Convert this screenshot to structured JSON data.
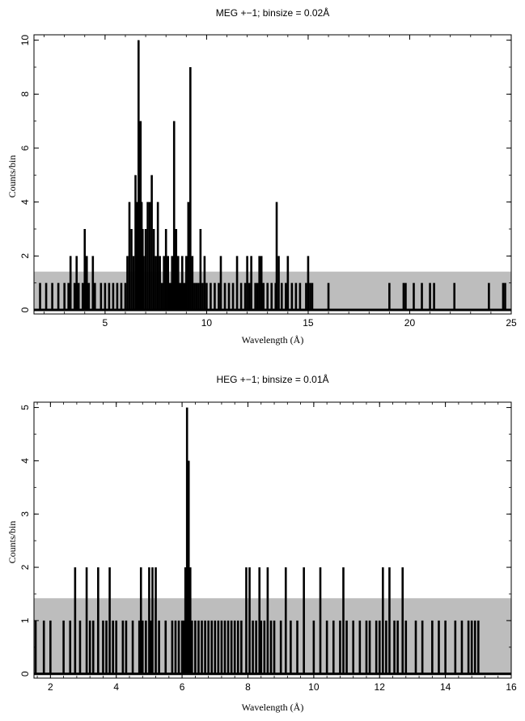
{
  "chart_data": [
    {
      "type": "bar",
      "title": "MEG +−1; binsize = 0.02Å",
      "xlabel": "Wavelength (Å)",
      "ylabel": "Counts/bin",
      "xlim": [
        1.5,
        25
      ],
      "ylim": [
        -0.15,
        10.2
      ],
      "xticks": [
        5,
        10,
        15,
        20,
        25
      ],
      "yticks": [
        0,
        2,
        4,
        6,
        8,
        10
      ],
      "band": [
        0,
        1.42
      ],
      "bars": [
        [
          1.8,
          1
        ],
        [
          2.1,
          1
        ],
        [
          2.4,
          1
        ],
        [
          2.7,
          1
        ],
        [
          3.0,
          1
        ],
        [
          3.2,
          1
        ],
        [
          3.3,
          2
        ],
        [
          3.5,
          1
        ],
        [
          3.6,
          2
        ],
        [
          3.7,
          1
        ],
        [
          3.9,
          1
        ],
        [
          4.0,
          3
        ],
        [
          4.1,
          2
        ],
        [
          4.2,
          1
        ],
        [
          4.4,
          2
        ],
        [
          4.5,
          1
        ],
        [
          4.8,
          1
        ],
        [
          5.0,
          1
        ],
        [
          5.2,
          1
        ],
        [
          5.4,
          1
        ],
        [
          5.6,
          1
        ],
        [
          5.8,
          1
        ],
        [
          6.0,
          1
        ],
        [
          6.1,
          2
        ],
        [
          6.2,
          4
        ],
        [
          6.3,
          3
        ],
        [
          6.4,
          2
        ],
        [
          6.5,
          5
        ],
        [
          6.55,
          4
        ],
        [
          6.65,
          10
        ],
        [
          6.7,
          5
        ],
        [
          6.75,
          7
        ],
        [
          6.8,
          4
        ],
        [
          6.85,
          3
        ],
        [
          6.9,
          2
        ],
        [
          7.0,
          3
        ],
        [
          7.1,
          4
        ],
        [
          7.2,
          4
        ],
        [
          7.3,
          5
        ],
        [
          7.4,
          3
        ],
        [
          7.5,
          2
        ],
        [
          7.6,
          4
        ],
        [
          7.7,
          2
        ],
        [
          7.8,
          1
        ],
        [
          7.9,
          2
        ],
        [
          8.0,
          3
        ],
        [
          8.1,
          2
        ],
        [
          8.2,
          1
        ],
        [
          8.3,
          2
        ],
        [
          8.4,
          7
        ],
        [
          8.5,
          3
        ],
        [
          8.6,
          2
        ],
        [
          8.7,
          1
        ],
        [
          8.8,
          2
        ],
        [
          8.9,
          1
        ],
        [
          9.0,
          2
        ],
        [
          9.1,
          4
        ],
        [
          9.2,
          9
        ],
        [
          9.3,
          2
        ],
        [
          9.4,
          1
        ],
        [
          9.5,
          1
        ],
        [
          9.6,
          1
        ],
        [
          9.7,
          3
        ],
        [
          9.8,
          1
        ],
        [
          9.9,
          2
        ],
        [
          10.0,
          1
        ],
        [
          10.2,
          1
        ],
        [
          10.4,
          1
        ],
        [
          10.6,
          1
        ],
        [
          10.7,
          2
        ],
        [
          10.9,
          1
        ],
        [
          11.1,
          1
        ],
        [
          11.3,
          1
        ],
        [
          11.5,
          2
        ],
        [
          11.7,
          1
        ],
        [
          11.9,
          1
        ],
        [
          12.0,
          2
        ],
        [
          12.1,
          1
        ],
        [
          12.2,
          2
        ],
        [
          12.4,
          1
        ],
        [
          12.5,
          1
        ],
        [
          12.6,
          2
        ],
        [
          12.7,
          2
        ],
        [
          12.8,
          1
        ],
        [
          13.0,
          1
        ],
        [
          13.2,
          1
        ],
        [
          13.4,
          1
        ],
        [
          13.45,
          4
        ],
        [
          13.55,
          2
        ],
        [
          13.7,
          1
        ],
        [
          13.9,
          1
        ],
        [
          14.0,
          2
        ],
        [
          14.2,
          1
        ],
        [
          14.4,
          1
        ],
        [
          14.6,
          1
        ],
        [
          14.9,
          1
        ],
        [
          15.0,
          2
        ],
        [
          15.1,
          1
        ],
        [
          15.2,
          1
        ],
        [
          16.0,
          1
        ],
        [
          19.0,
          1
        ],
        [
          19.7,
          1
        ],
        [
          19.8,
          1
        ],
        [
          20.2,
          1
        ],
        [
          20.6,
          1
        ],
        [
          21.0,
          1
        ],
        [
          21.2,
          1
        ],
        [
          22.2,
          1
        ],
        [
          23.9,
          1
        ],
        [
          24.6,
          1
        ],
        [
          24.7,
          1
        ]
      ]
    },
    {
      "type": "bar",
      "title": "HEG +−1; binsize = 0.01Å",
      "xlabel": "Wavelength (Å)",
      "ylabel": "Counts/bin",
      "xlim": [
        1.5,
        16
      ],
      "ylim": [
        -0.08,
        5.1
      ],
      "xticks": [
        2,
        4,
        6,
        8,
        10,
        12,
        14,
        16
      ],
      "yticks": [
        0,
        1,
        2,
        3,
        4,
        5
      ],
      "band": [
        0,
        1.42
      ],
      "bars": [
        [
          1.55,
          1
        ],
        [
          1.8,
          1
        ],
        [
          2.0,
          1
        ],
        [
          2.4,
          1
        ],
        [
          2.6,
          1
        ],
        [
          2.75,
          2
        ],
        [
          2.9,
          1
        ],
        [
          3.1,
          2
        ],
        [
          3.2,
          1
        ],
        [
          3.3,
          1
        ],
        [
          3.45,
          2
        ],
        [
          3.6,
          1
        ],
        [
          3.7,
          1
        ],
        [
          3.8,
          2
        ],
        [
          3.9,
          1
        ],
        [
          4.0,
          1
        ],
        [
          4.2,
          1
        ],
        [
          4.3,
          1
        ],
        [
          4.5,
          1
        ],
        [
          4.7,
          1
        ],
        [
          4.75,
          2
        ],
        [
          4.8,
          1
        ],
        [
          4.9,
          1
        ],
        [
          5.0,
          2
        ],
        [
          5.05,
          1
        ],
        [
          5.1,
          2
        ],
        [
          5.2,
          2
        ],
        [
          5.3,
          1
        ],
        [
          5.5,
          1
        ],
        [
          5.7,
          1
        ],
        [
          5.8,
          1
        ],
        [
          5.9,
          1
        ],
        [
          6.0,
          1
        ],
        [
          6.05,
          1
        ],
        [
          6.1,
          2
        ],
        [
          6.15,
          5
        ],
        [
          6.2,
          4
        ],
        [
          6.25,
          2
        ],
        [
          6.3,
          1
        ],
        [
          6.4,
          1
        ],
        [
          6.5,
          1
        ],
        [
          6.6,
          1
        ],
        [
          6.7,
          1
        ],
        [
          6.8,
          1
        ],
        [
          6.9,
          1
        ],
        [
          7.0,
          1
        ],
        [
          7.1,
          1
        ],
        [
          7.2,
          1
        ],
        [
          7.3,
          1
        ],
        [
          7.4,
          1
        ],
        [
          7.5,
          1
        ],
        [
          7.6,
          1
        ],
        [
          7.7,
          1
        ],
        [
          7.8,
          1
        ],
        [
          7.95,
          2
        ],
        [
          8.05,
          2
        ],
        [
          8.15,
          1
        ],
        [
          8.25,
          1
        ],
        [
          8.35,
          2
        ],
        [
          8.4,
          1
        ],
        [
          8.5,
          1
        ],
        [
          8.6,
          2
        ],
        [
          8.7,
          1
        ],
        [
          8.8,
          1
        ],
        [
          9.0,
          1
        ],
        [
          9.15,
          2
        ],
        [
          9.3,
          1
        ],
        [
          9.5,
          1
        ],
        [
          9.7,
          2
        ],
        [
          10.0,
          1
        ],
        [
          10.2,
          2
        ],
        [
          10.4,
          1
        ],
        [
          10.6,
          1
        ],
        [
          10.8,
          1
        ],
        [
          10.9,
          2
        ],
        [
          11.0,
          1
        ],
        [
          11.2,
          1
        ],
        [
          11.4,
          1
        ],
        [
          11.6,
          1
        ],
        [
          11.7,
          1
        ],
        [
          11.9,
          1
        ],
        [
          12.0,
          1
        ],
        [
          12.1,
          2
        ],
        [
          12.2,
          1
        ],
        [
          12.3,
          2
        ],
        [
          12.45,
          1
        ],
        [
          12.55,
          1
        ],
        [
          12.7,
          2
        ],
        [
          12.8,
          1
        ],
        [
          13.1,
          1
        ],
        [
          13.3,
          1
        ],
        [
          13.6,
          1
        ],
        [
          13.8,
          1
        ],
        [
          14.0,
          1
        ],
        [
          14.3,
          1
        ],
        [
          14.5,
          1
        ],
        [
          14.7,
          1
        ],
        [
          14.8,
          1
        ],
        [
          14.9,
          1
        ],
        [
          15.0,
          1
        ]
      ]
    }
  ]
}
